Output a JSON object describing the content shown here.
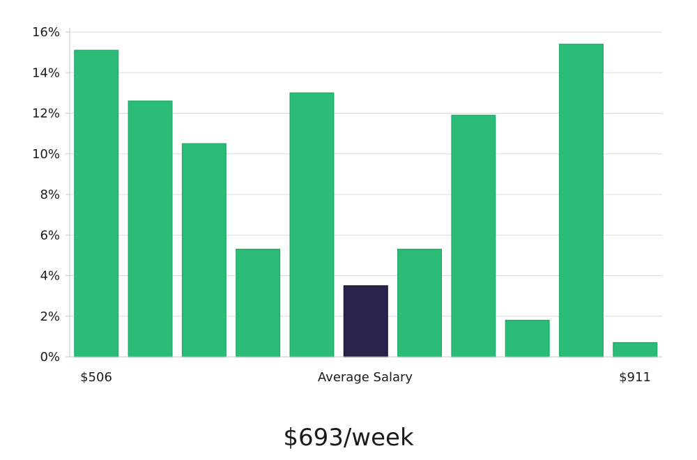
{
  "chart_data": {
    "type": "bar",
    "values": [
      15.1,
      12.6,
      10.5,
      5.3,
      13.0,
      3.5,
      5.3,
      11.9,
      1.8,
      15.4,
      0.7
    ],
    "highlight_index": 5,
    "ylim": [
      0,
      16
    ],
    "yticks": [
      "0%",
      "2%",
      "4%",
      "6%",
      "8%",
      "10%",
      "12%",
      "14%",
      "16%"
    ],
    "ytick_values": [
      0,
      2,
      4,
      6,
      8,
      10,
      12,
      14,
      16
    ],
    "x_min_label": "$506",
    "x_center_label": "Average Salary",
    "x_max_label": "$911",
    "grid": true,
    "colors": {
      "bar": "#2bbd77",
      "bar_stroke": "#25ad6b",
      "highlight": "#29254a",
      "highlight_stroke": "#1a1733"
    }
  },
  "salary_text": "$693/week"
}
